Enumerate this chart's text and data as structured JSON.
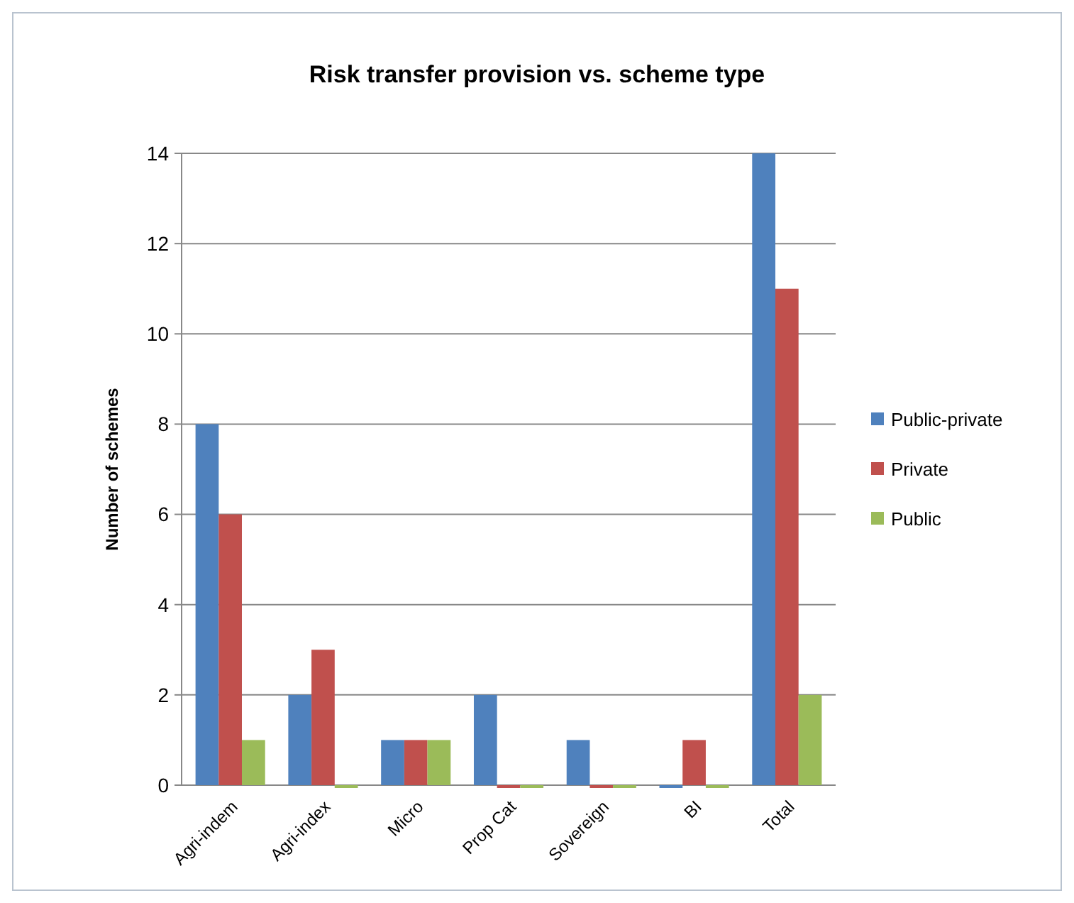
{
  "chart_data": {
    "type": "bar",
    "title": "Risk transfer provision vs. scheme type",
    "ylabel": "Number of schemes",
    "categories": [
      "Agri-indem",
      "Agri-index",
      "Micro",
      "Prop Cat",
      "Sovereign",
      "BI",
      "Total"
    ],
    "series": [
      {
        "name": "Public-private",
        "color": "#4f81bd",
        "values": [
          8,
          2,
          1,
          2,
          1,
          0,
          14
        ]
      },
      {
        "name": "Private",
        "color": "#c0504d",
        "values": [
          6,
          3,
          1,
          0,
          0,
          1,
          11
        ]
      },
      {
        "name": "Public",
        "color": "#9bbb59",
        "values": [
          1,
          0,
          1,
          0,
          0,
          0,
          2
        ]
      }
    ],
    "ylim": [
      0,
      14
    ],
    "yticks": [
      0,
      2,
      4,
      6,
      8,
      10,
      12,
      14
    ],
    "grid": "y",
    "legend": "right"
  }
}
